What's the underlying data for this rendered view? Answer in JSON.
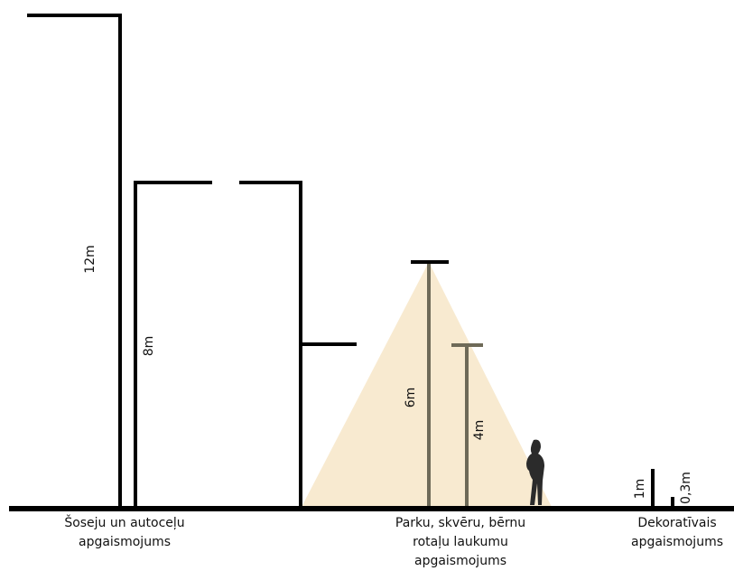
{
  "height_labels": [
    "12m",
    "8m",
    "6m",
    "4m",
    "1m",
    "0,3m"
  ],
  "groups": [
    {
      "lines": [
        "Šoseju un autoceļu",
        "apgaismojums"
      ]
    },
    {
      "lines": [
        "Parku, skvēru, bērnu",
        "rotaļu laukumu",
        "apgaismojums"
      ]
    },
    {
      "lines": [
        "Dekoratīvais",
        "apgaismojums"
      ]
    }
  ]
}
